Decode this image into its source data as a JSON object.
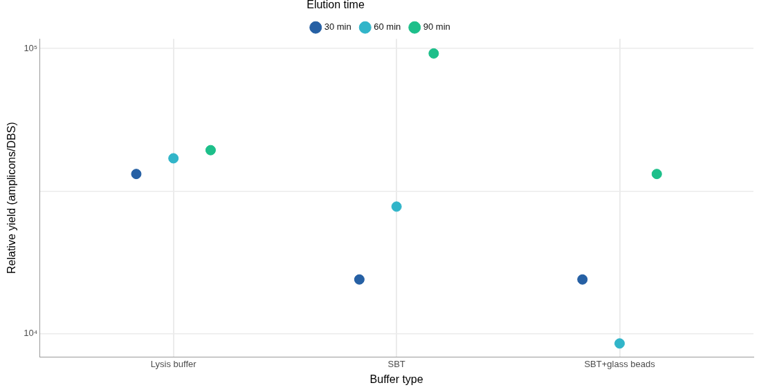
{
  "chart_data": {
    "type": "scatter",
    "xlabel": "Buffer type",
    "ylabel": "Relative yield (amplicons/DBS)",
    "legend_title": "Elution time",
    "categories": [
      "Lysis buffer",
      "SBT",
      "SBT+glass beads"
    ],
    "series": [
      {
        "name": "30 min",
        "color": "#2660a4",
        "values": [
          36300,
          15500,
          15500
        ]
      },
      {
        "name": "60 min",
        "color": "#31b5c9",
        "values": [
          41200,
          27900,
          9250
        ]
      },
      {
        "name": "90 min",
        "color": "#1dbf8a",
        "values": [
          44000,
          96000,
          36300
        ]
      }
    ],
    "log": "y",
    "ylim": [
      8300,
      108000
    ],
    "yticks": [
      {
        "value": 10000,
        "label": "10⁴"
      },
      {
        "value": 31623,
        "label": null
      },
      {
        "value": 100000,
        "label": "10⁵"
      }
    ],
    "grid": true,
    "legend": "top",
    "marker": "circle"
  }
}
